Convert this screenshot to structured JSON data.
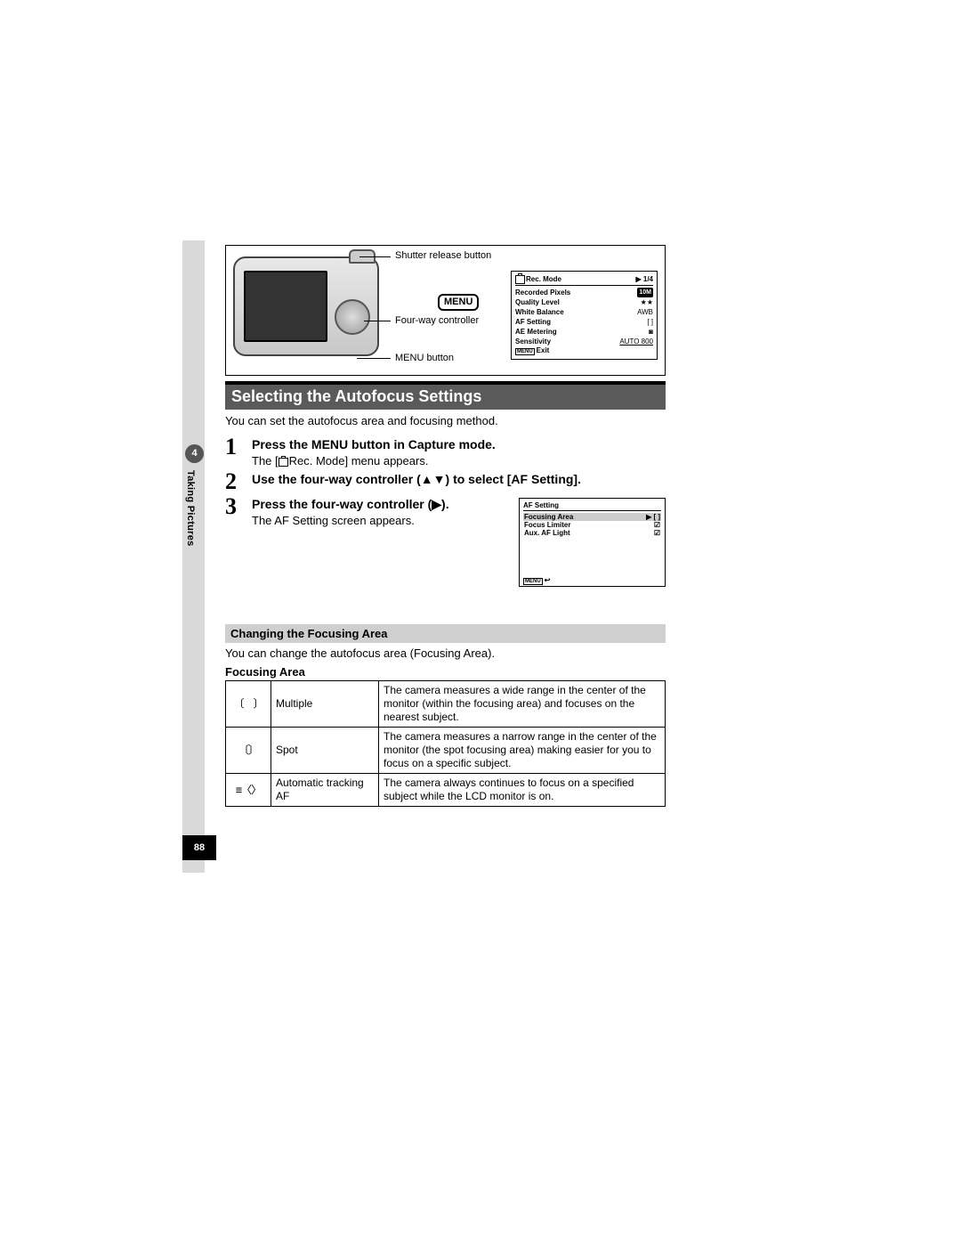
{
  "side": {
    "chapter_number": "4",
    "chapter_title": "Taking Pictures",
    "page_number": "88"
  },
  "diagram": {
    "callout_shutter": "Shutter release button",
    "callout_menu_badge": "MENU",
    "callout_fourway": "Four-way controller",
    "callout_menubutton": "MENU button"
  },
  "rec_mode_screen": {
    "title": "Rec. Mode",
    "page_indicator": "▶ 1/4",
    "rows": [
      {
        "label": "Recorded Pixels",
        "value": "10M",
        "pill": true
      },
      {
        "label": "Quality Level",
        "value": "★★"
      },
      {
        "label": "White Balance",
        "value": "AWB"
      },
      {
        "label": "AF Setting",
        "value": "[ ]"
      },
      {
        "label": "AE Metering",
        "value": "◙"
      },
      {
        "label": "Sensitivity",
        "value": "AUTO 800",
        "underline": true
      }
    ],
    "exit_label": "Exit",
    "menu_box": "MENU"
  },
  "section_title": "Selecting the Autofocus Settings",
  "intro": "You can set the autofocus area and focusing method.",
  "steps": [
    {
      "num": "1",
      "title": "Press the MENU button in Capture mode.",
      "desc_prefix": "The [",
      "desc_suffix": "Rec. Mode] menu appears."
    },
    {
      "num": "2",
      "title": "Use the four-way controller (▲▼) to select [AF Setting].",
      "desc": ""
    },
    {
      "num": "3",
      "title": "Press the four-way controller (▶).",
      "desc": "The AF Setting screen appears."
    }
  ],
  "af_screen": {
    "title": "AF Setting",
    "rows": [
      {
        "label": "Focusing Area",
        "value": "▶ [  ]",
        "hl": true
      },
      {
        "label": "Focus Limiter",
        "value": "☑"
      },
      {
        "label": "Aux. AF Light",
        "value": "☑"
      }
    ],
    "menu_box": "MENU",
    "back_arrow": "↩"
  },
  "subheading": "Changing the Focusing Area",
  "sub_intro": "You can change the autofocus area (Focusing Area).",
  "table_title": "Focusing Area",
  "focusing_area_table": [
    {
      "icon": "〔　〕",
      "name": "Multiple",
      "desc": "The camera measures a wide range in the center of the monitor (within the focusing area) and focuses on the nearest subject."
    },
    {
      "icon": "〔〕",
      "name": "Spot",
      "desc": "The camera measures a narrow range in the center of the monitor (the spot focusing area) making easier for you to focus on a specific subject."
    },
    {
      "icon": "≡〈〉",
      "name": "Automatic tracking AF",
      "desc": "The camera always continues to focus on a specified subject while the LCD monitor is on."
    }
  ]
}
